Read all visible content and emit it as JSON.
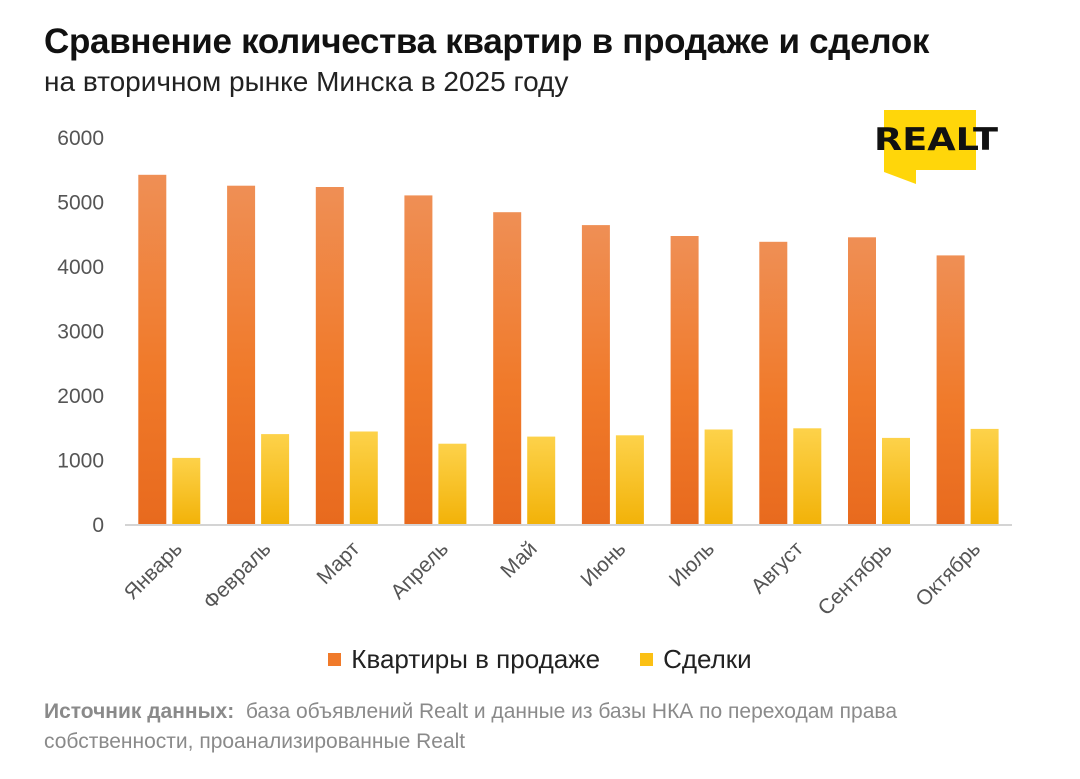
{
  "header": {
    "title": "Сравнение количества квартир в продаже и сделок",
    "subtitle": "на вторичном рынке Минска в 2025 году"
  },
  "logo": {
    "text": "REALT",
    "color": "#FFD60A"
  },
  "chart_data": {
    "type": "bar",
    "title": "Сравнение количества квартир в продаже и сделок",
    "subtitle": "на вторичном рынке Минска в 2025 году",
    "categories": [
      "Январь",
      "Февраль",
      "Март",
      "Апрель",
      "Май",
      "Июнь",
      "Июль",
      "Август",
      "Сентябрь",
      "Октябрь"
    ],
    "series": [
      {
        "name": "Квартиры в продаже",
        "color": "#F07A2A",
        "values": [
          5430,
          5260,
          5240,
          5110,
          4850,
          4650,
          4480,
          4390,
          4460,
          4180
        ]
      },
      {
        "name": "Сделки",
        "color": "#FBC014",
        "values": [
          1040,
          1410,
          1450,
          1260,
          1370,
          1390,
          1480,
          1500,
          1350,
          1490
        ]
      }
    ],
    "yticks": [
      0,
      1000,
      2000,
      3000,
      4000,
      5000,
      6000
    ],
    "ylim": [
      0,
      6000
    ],
    "xlabel": "",
    "ylabel": "",
    "grid": false,
    "legend_position": "bottom"
  },
  "source": {
    "label": "Источник данных:",
    "text": "база объявлений Realt и данные из базы НКА по переходам права собственности, проанализированные Realt"
  }
}
